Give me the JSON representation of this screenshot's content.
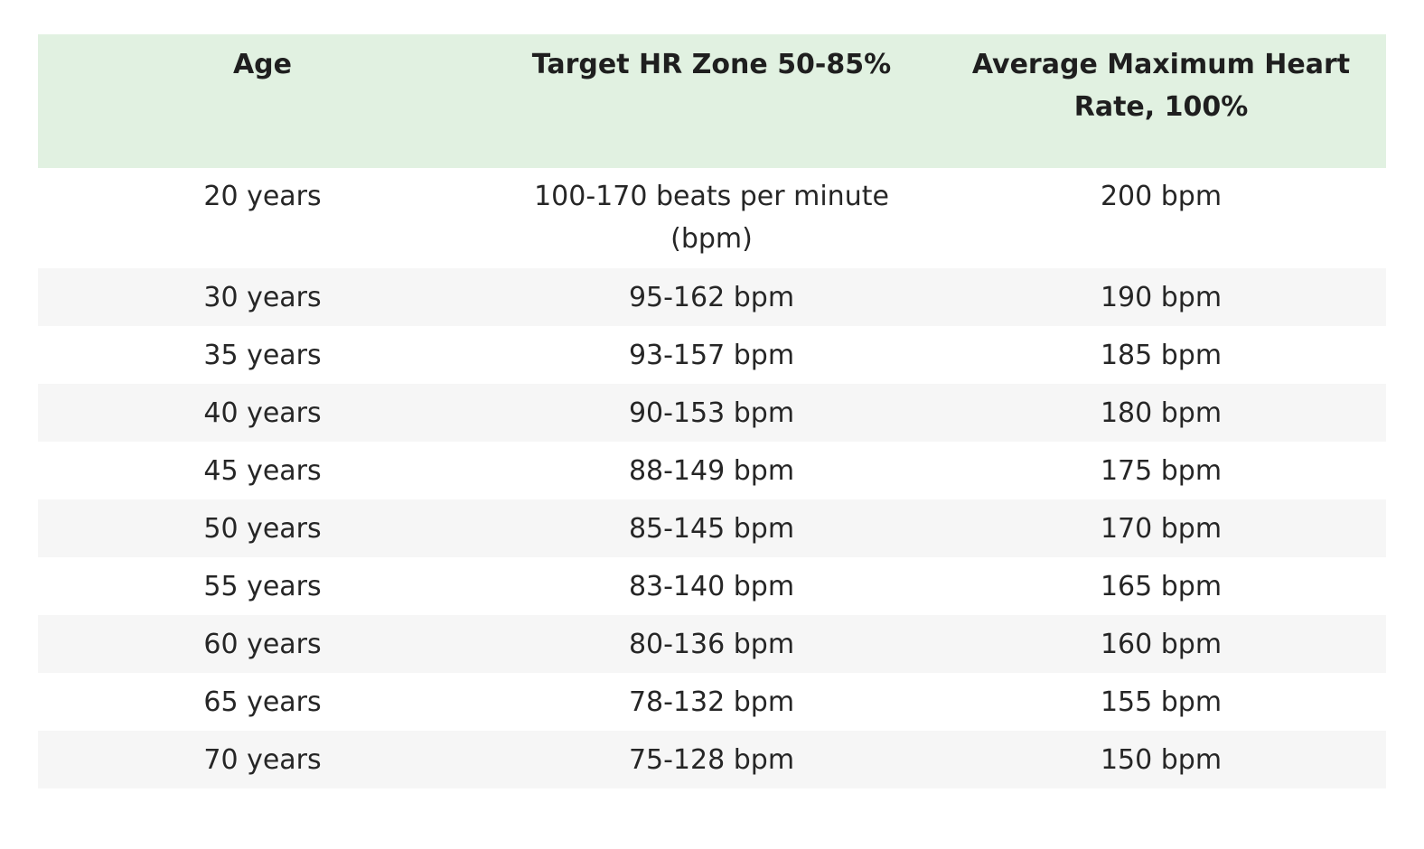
{
  "table": {
    "headers": [
      "Age",
      "Target HR Zone 50-85%",
      "Average Maximum Heart Rate, 100%"
    ],
    "rows": [
      [
        "20 years",
        "100-170 beats per minute (bpm)",
        "200 bpm"
      ],
      [
        "30 years",
        "95-162 bpm",
        "190 bpm"
      ],
      [
        "35 years",
        "93-157 bpm",
        "185 bpm"
      ],
      [
        "40 years",
        "90-153 bpm",
        "180 bpm"
      ],
      [
        "45 years",
        "88-149 bpm",
        "175 bpm"
      ],
      [
        "50 years",
        "85-145 bpm",
        "170 bpm"
      ],
      [
        "55 years",
        "83-140 bpm",
        "165 bpm"
      ],
      [
        "60 years",
        "80-136 bpm",
        "160 bpm"
      ],
      [
        "65 years",
        "78-132 bpm",
        "155 bpm"
      ],
      [
        "70 years",
        "75-128 bpm",
        "150 bpm"
      ]
    ]
  },
  "colors": {
    "header_background": "#e1f1e1",
    "stripe_background": "#f6f6f6",
    "row_background": "#ffffff",
    "text": "#222222"
  }
}
